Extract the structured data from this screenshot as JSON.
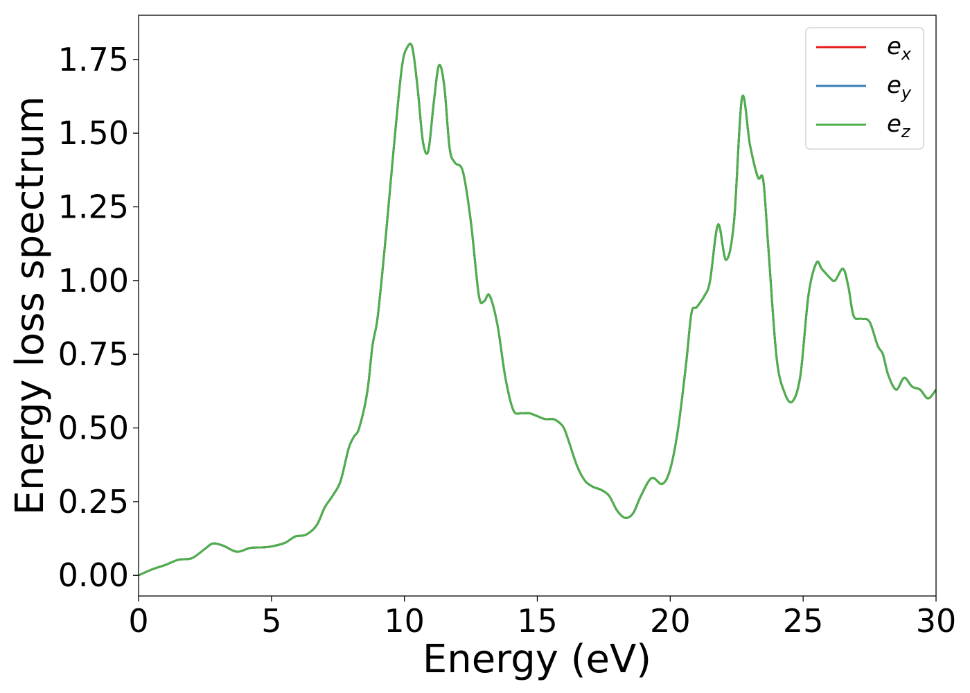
{
  "chart_data": {
    "type": "line",
    "xlabel": "Energy (eV)",
    "ylabel": "Energy loss spectrum",
    "xlim": [
      0,
      30
    ],
    "ylim": [
      -0.07,
      1.9
    ],
    "xticks": [
      0,
      5,
      10,
      15,
      20,
      25,
      30
    ],
    "xtick_labels": [
      "0",
      "5",
      "10",
      "15",
      "20",
      "25",
      "30"
    ],
    "yticks": [
      0,
      0.25,
      0.5,
      0.75,
      1.0,
      1.25,
      1.5,
      1.75
    ],
    "ytick_labels": [
      "0.00",
      "0.25",
      "0.50",
      "0.75",
      "1.00",
      "1.25",
      "1.50",
      "1.75"
    ],
    "grid": false,
    "legend_position": "top-right",
    "x": [
      0,
      0.5,
      1.0,
      1.5,
      2.0,
      2.5,
      2.8,
      3.2,
      3.7,
      4.2,
      4.7,
      5.0,
      5.5,
      5.9,
      6.3,
      6.7,
      7.0,
      7.3,
      7.6,
      7.9,
      8.1,
      8.3,
      8.6,
      8.8,
      9.0,
      9.3,
      9.6,
      9.9,
      10.1,
      10.3,
      10.5,
      10.7,
      10.9,
      11.1,
      11.3,
      11.5,
      11.7,
      11.9,
      12.2,
      12.5,
      12.8,
      13.0,
      13.2,
      13.5,
      13.8,
      14.1,
      14.4,
      14.7,
      15.0,
      15.3,
      15.6,
      15.8,
      16.0,
      16.2,
      16.5,
      16.8,
      17.1,
      17.4,
      17.7,
      18.0,
      18.3,
      18.6,
      18.9,
      19.3,
      19.7,
      20.0,
      20.3,
      20.6,
      20.8,
      21.0,
      21.3,
      21.5,
      21.8,
      22.1,
      22.4,
      22.7,
      23.0,
      23.3,
      23.5,
      23.7,
      24.0,
      24.3,
      24.6,
      24.9,
      25.2,
      25.5,
      25.7,
      26.0,
      26.2,
      26.5,
      26.7,
      26.9,
      27.2,
      27.5,
      27.8,
      28.0,
      28.2,
      28.5,
      28.8,
      29.1,
      29.4,
      29.7,
      30.0
    ],
    "series": [
      {
        "name": "e_x",
        "color": "#e41a1c",
        "values": [
          0.0,
          0.02,
          0.035,
          0.053,
          0.058,
          0.09,
          0.108,
          0.1,
          0.08,
          0.093,
          0.095,
          0.098,
          0.11,
          0.132,
          0.138,
          0.17,
          0.23,
          0.27,
          0.32,
          0.43,
          0.47,
          0.5,
          0.62,
          0.78,
          0.88,
          1.15,
          1.45,
          1.72,
          1.79,
          1.79,
          1.65,
          1.47,
          1.44,
          1.6,
          1.73,
          1.66,
          1.45,
          1.4,
          1.37,
          1.2,
          0.95,
          0.93,
          0.95,
          0.85,
          0.67,
          0.56,
          0.55,
          0.55,
          0.54,
          0.53,
          0.53,
          0.52,
          0.5,
          0.45,
          0.37,
          0.32,
          0.3,
          0.29,
          0.27,
          0.22,
          0.195,
          0.21,
          0.27,
          0.33,
          0.31,
          0.36,
          0.5,
          0.72,
          0.89,
          0.91,
          0.95,
          1.0,
          1.19,
          1.07,
          1.2,
          1.62,
          1.46,
          1.35,
          1.34,
          1.1,
          0.74,
          0.62,
          0.59,
          0.68,
          0.95,
          1.06,
          1.04,
          1.01,
          1.0,
          1.04,
          0.98,
          0.88,
          0.87,
          0.86,
          0.78,
          0.75,
          0.68,
          0.63,
          0.67,
          0.64,
          0.63,
          0.6,
          0.63
        ]
      },
      {
        "name": "e_y",
        "color": "#377eb8",
        "values": [
          0.0,
          0.02,
          0.035,
          0.053,
          0.058,
          0.09,
          0.108,
          0.1,
          0.08,
          0.093,
          0.095,
          0.098,
          0.11,
          0.132,
          0.138,
          0.17,
          0.23,
          0.27,
          0.32,
          0.43,
          0.47,
          0.5,
          0.62,
          0.78,
          0.88,
          1.15,
          1.45,
          1.72,
          1.79,
          1.79,
          1.65,
          1.47,
          1.44,
          1.6,
          1.73,
          1.66,
          1.45,
          1.4,
          1.37,
          1.2,
          0.95,
          0.93,
          0.95,
          0.85,
          0.67,
          0.56,
          0.55,
          0.55,
          0.54,
          0.53,
          0.53,
          0.52,
          0.5,
          0.45,
          0.37,
          0.32,
          0.3,
          0.29,
          0.27,
          0.22,
          0.195,
          0.21,
          0.27,
          0.33,
          0.31,
          0.36,
          0.5,
          0.72,
          0.89,
          0.91,
          0.95,
          1.0,
          1.19,
          1.07,
          1.2,
          1.62,
          1.46,
          1.35,
          1.34,
          1.1,
          0.74,
          0.62,
          0.59,
          0.68,
          0.95,
          1.06,
          1.04,
          1.01,
          1.0,
          1.04,
          0.98,
          0.88,
          0.87,
          0.86,
          0.78,
          0.75,
          0.68,
          0.63,
          0.67,
          0.64,
          0.63,
          0.6,
          0.63
        ]
      },
      {
        "name": "e_z",
        "color": "#4daf4a",
        "values": [
          0.0,
          0.02,
          0.035,
          0.053,
          0.058,
          0.09,
          0.108,
          0.1,
          0.08,
          0.093,
          0.095,
          0.098,
          0.11,
          0.132,
          0.138,
          0.17,
          0.23,
          0.27,
          0.32,
          0.43,
          0.47,
          0.5,
          0.62,
          0.78,
          0.88,
          1.15,
          1.45,
          1.72,
          1.79,
          1.79,
          1.65,
          1.47,
          1.44,
          1.6,
          1.73,
          1.66,
          1.45,
          1.4,
          1.37,
          1.2,
          0.95,
          0.93,
          0.95,
          0.85,
          0.67,
          0.56,
          0.55,
          0.55,
          0.54,
          0.53,
          0.53,
          0.52,
          0.5,
          0.45,
          0.37,
          0.32,
          0.3,
          0.29,
          0.27,
          0.22,
          0.195,
          0.21,
          0.27,
          0.33,
          0.31,
          0.36,
          0.5,
          0.72,
          0.89,
          0.91,
          0.95,
          1.0,
          1.19,
          1.07,
          1.2,
          1.62,
          1.46,
          1.35,
          1.34,
          1.1,
          0.74,
          0.62,
          0.59,
          0.68,
          0.95,
          1.06,
          1.04,
          1.01,
          1.0,
          1.04,
          0.98,
          0.88,
          0.87,
          0.86,
          0.78,
          0.75,
          0.68,
          0.63,
          0.67,
          0.64,
          0.63,
          0.6,
          0.63
        ]
      }
    ],
    "legend": [
      {
        "base": "e",
        "sub": "x"
      },
      {
        "base": "e",
        "sub": "y"
      },
      {
        "base": "e",
        "sub": "z"
      }
    ]
  }
}
